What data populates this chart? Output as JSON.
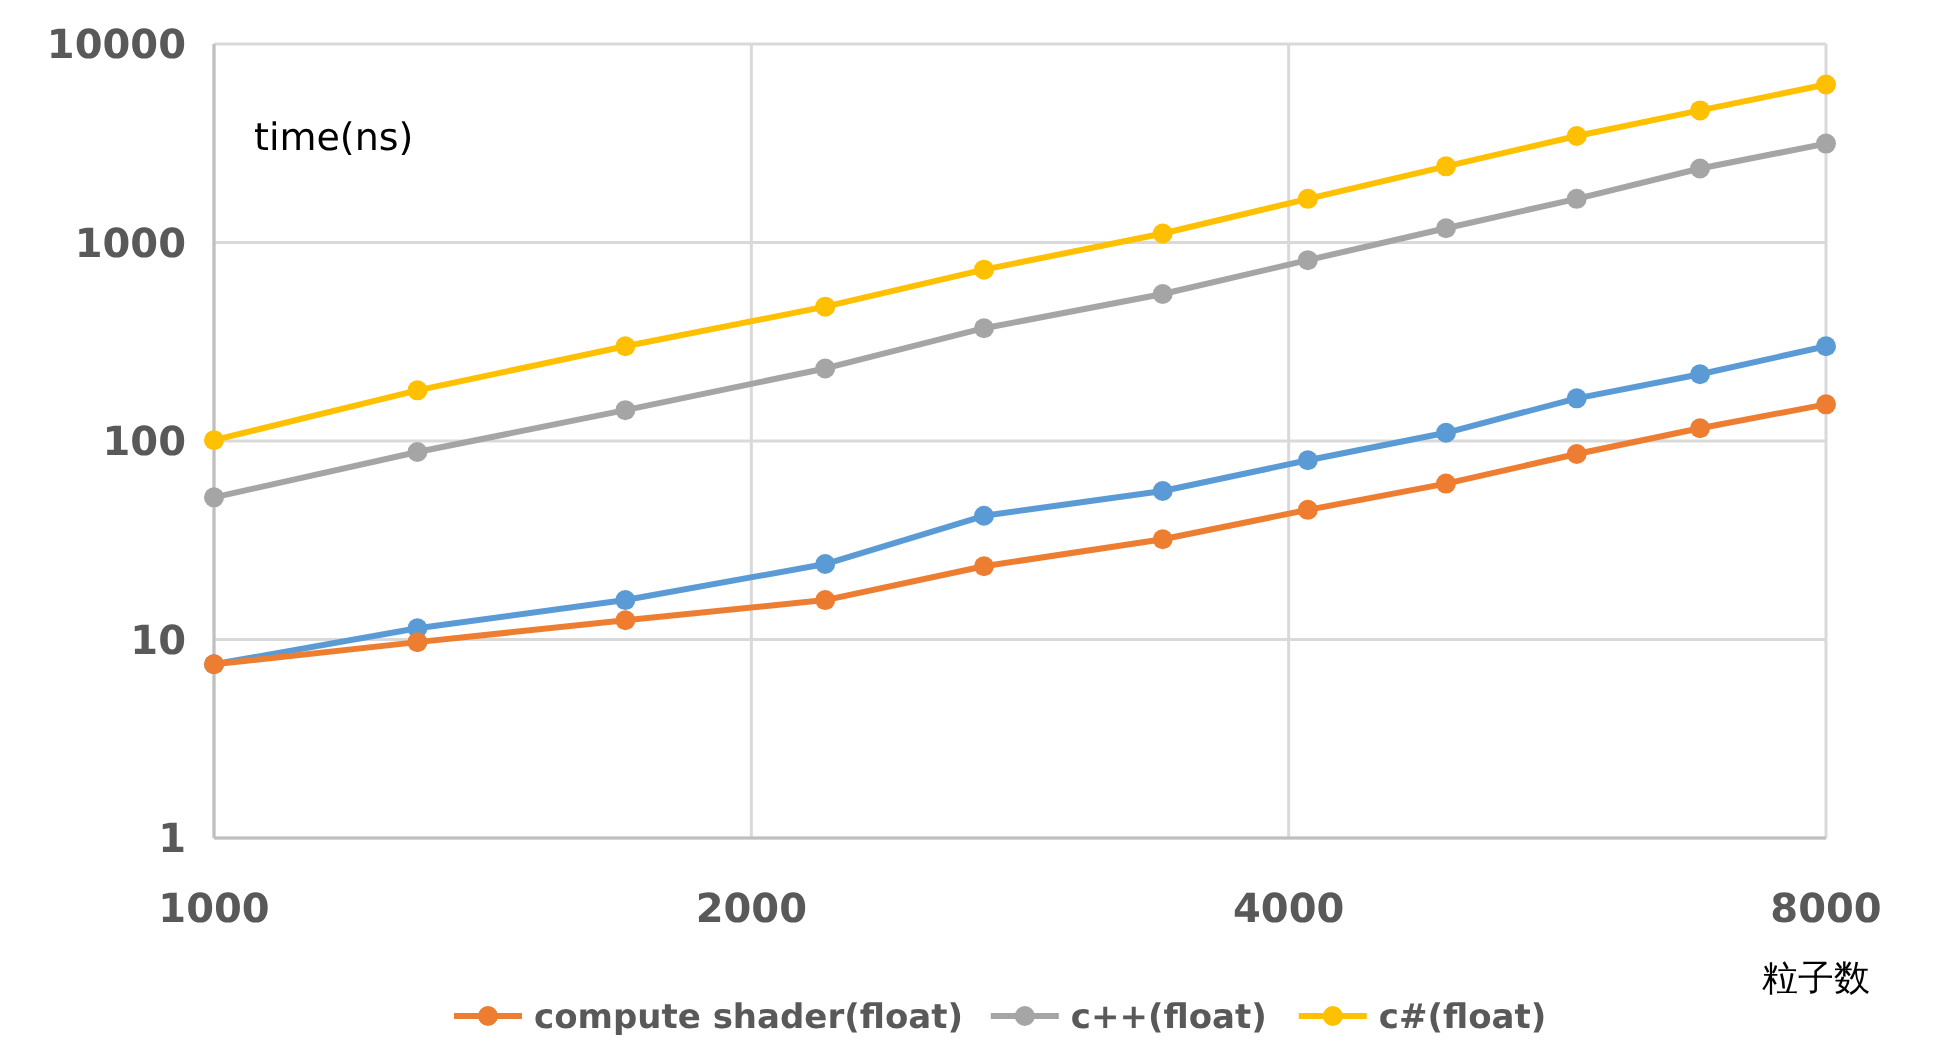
{
  "chart_data": {
    "type": "line",
    "xlabel": "粒子数",
    "ylabel": "time(ns)",
    "x": [
      1000,
      1300,
      1700,
      2200,
      2700,
      3400,
      4100,
      4900,
      5800,
      6800,
      8000
    ],
    "series": [
      {
        "color": "#5b9bd5",
        "values": [
          7.5,
          11.4,
          15.8,
          24,
          42,
          56,
          80,
          110,
          164,
          217,
          300
        ]
      },
      {
        "name": "compute shader(float)",
        "color": "#ed7d31",
        "values": [
          7.5,
          9.7,
          12.5,
          15.8,
          23.4,
          32,
          45,
          61,
          86,
          116,
          153
        ]
      },
      {
        "name": "c++(float)",
        "color": "#a5a5a5",
        "values": [
          52,
          88,
          143,
          232,
          370,
          550,
          815,
          1180,
          1660,
          2360,
          3150
        ]
      },
      {
        "name": "c#(float)",
        "color": "#ffc000",
        "values": [
          101,
          180,
          300,
          475,
          730,
          1110,
          1660,
          2420,
          3440,
          4630,
          6250
        ]
      }
    ],
    "xlim": [
      1000,
      8000
    ],
    "ylim": [
      1,
      10000
    ],
    "xticks": [
      1000,
      2000,
      4000,
      8000
    ],
    "yticks": [
      1,
      10,
      100,
      1000,
      10000
    ],
    "log": "xy",
    "grid": true,
    "legend": "bottom",
    "marker": "circle",
    "line_style": "solid"
  }
}
